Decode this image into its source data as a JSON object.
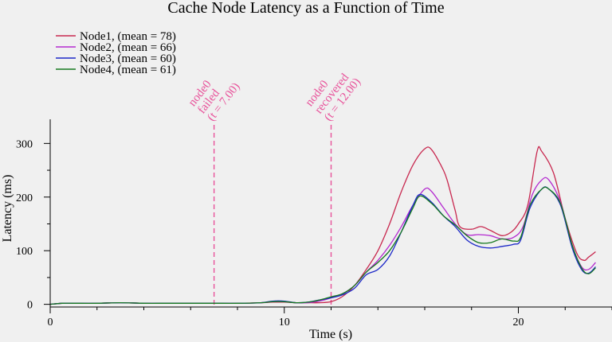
{
  "chart_data": {
    "type": "line",
    "title": "Cache Node Latency as a Function of Time",
    "xlabel": "Time (s)",
    "ylabel": "Latency (ms)",
    "xlim": [
      0,
      24
    ],
    "ylim": [
      -5,
      345
    ],
    "xticks": [
      0,
      10,
      20
    ],
    "xticks_minor": [
      2,
      4,
      6,
      8,
      12,
      14,
      16,
      18,
      22,
      24
    ],
    "yticks": [
      0,
      100,
      200,
      300
    ],
    "grid": false,
    "legend_position": "top-left",
    "series": [
      {
        "name": "Node1, (mean = 78)",
        "color": "#c8284f",
        "points": [
          [
            0,
            0
          ],
          [
            0.5,
            2
          ],
          [
            1,
            2
          ],
          [
            2,
            2
          ],
          [
            3,
            3
          ],
          [
            4,
            2
          ],
          [
            5,
            2
          ],
          [
            6,
            2
          ],
          [
            7,
            2
          ],
          [
            8,
            2
          ],
          [
            9,
            3
          ],
          [
            9.5,
            4
          ],
          [
            10,
            4
          ],
          [
            10.5,
            3
          ],
          [
            11,
            3
          ],
          [
            11.5,
            3
          ],
          [
            12,
            5
          ],
          [
            12.5,
            15
          ],
          [
            13,
            35
          ],
          [
            13.5,
            65
          ],
          [
            14,
            100
          ],
          [
            14.5,
            150
          ],
          [
            15,
            210
          ],
          [
            15.5,
            260
          ],
          [
            16,
            290
          ],
          [
            16.3,
            288
          ],
          [
            16.8,
            250
          ],
          [
            17,
            225
          ],
          [
            17.3,
            175
          ],
          [
            17.5,
            145
          ],
          [
            18,
            140
          ],
          [
            18.4,
            145
          ],
          [
            18.8,
            138
          ],
          [
            19.3,
            128
          ],
          [
            19.7,
            135
          ],
          [
            20,
            150
          ],
          [
            20.4,
            185
          ],
          [
            20.8,
            285
          ],
          [
            21,
            285
          ],
          [
            21.5,
            245
          ],
          [
            22,
            160
          ],
          [
            22.5,
            95
          ],
          [
            22.8,
            82
          ],
          [
            23,
            88
          ],
          [
            23.3,
            98
          ]
        ]
      },
      {
        "name": "Node2, (mean = 66)",
        "color": "#b42ad0",
        "points": [
          [
            0,
            0
          ],
          [
            0.5,
            2
          ],
          [
            1,
            2
          ],
          [
            2,
            2
          ],
          [
            3,
            3
          ],
          [
            4,
            2
          ],
          [
            5,
            2
          ],
          [
            6,
            2
          ],
          [
            7,
            2
          ],
          [
            8,
            2
          ],
          [
            9,
            3
          ],
          [
            9.5,
            5
          ],
          [
            10,
            5
          ],
          [
            10.5,
            3
          ],
          [
            11,
            3
          ],
          [
            11.5,
            6
          ],
          [
            12,
            12
          ],
          [
            12.5,
            20
          ],
          [
            13,
            35
          ],
          [
            13.5,
            60
          ],
          [
            14,
            82
          ],
          [
            14.5,
            110
          ],
          [
            15,
            145
          ],
          [
            15.5,
            185
          ],
          [
            16,
            215
          ],
          [
            16.3,
            210
          ],
          [
            16.8,
            180
          ],
          [
            17.3,
            150
          ],
          [
            17.8,
            130
          ],
          [
            18.3,
            130
          ],
          [
            18.8,
            128
          ],
          [
            19.3,
            122
          ],
          [
            19.8,
            125
          ],
          [
            20.2,
            145
          ],
          [
            20.6,
            205
          ],
          [
            21,
            232
          ],
          [
            21.3,
            232
          ],
          [
            21.8,
            190
          ],
          [
            22.3,
            110
          ],
          [
            22.7,
            70
          ],
          [
            23,
            65
          ],
          [
            23.3,
            78
          ]
        ]
      },
      {
        "name": "Node3, (mean = 60)",
        "color": "#1c28c8",
        "points": [
          [
            0,
            0
          ],
          [
            0.5,
            2
          ],
          [
            1,
            2
          ],
          [
            2,
            2
          ],
          [
            3,
            3
          ],
          [
            4,
            2
          ],
          [
            5,
            2
          ],
          [
            6,
            2
          ],
          [
            7,
            2
          ],
          [
            8,
            2
          ],
          [
            9,
            3
          ],
          [
            9.5,
            6
          ],
          [
            10,
            6
          ],
          [
            10.5,
            3
          ],
          [
            11,
            4
          ],
          [
            11.5,
            8
          ],
          [
            12,
            12
          ],
          [
            12.5,
            18
          ],
          [
            13,
            30
          ],
          [
            13.5,
            55
          ],
          [
            14,
            65
          ],
          [
            14.5,
            90
          ],
          [
            15,
            135
          ],
          [
            15.5,
            185
          ],
          [
            15.8,
            205
          ],
          [
            16.3,
            190
          ],
          [
            16.8,
            165
          ],
          [
            17.3,
            145
          ],
          [
            17.8,
            120
          ],
          [
            18.3,
            108
          ],
          [
            18.8,
            105
          ],
          [
            19.3,
            108
          ],
          [
            19.8,
            112
          ],
          [
            20.1,
            120
          ],
          [
            20.5,
            180
          ],
          [
            21,
            215
          ],
          [
            21.3,
            215
          ],
          [
            21.8,
            185
          ],
          [
            22.3,
            105
          ],
          [
            22.7,
            65
          ],
          [
            23,
            58
          ],
          [
            23.3,
            70
          ]
        ]
      },
      {
        "name": "Node4, (mean = 61)",
        "color": "#15781f",
        "points": [
          [
            0,
            0
          ],
          [
            0.5,
            2
          ],
          [
            1,
            2
          ],
          [
            2,
            2
          ],
          [
            3,
            3
          ],
          [
            4,
            2
          ],
          [
            5,
            2
          ],
          [
            6,
            2
          ],
          [
            7,
            2
          ],
          [
            8,
            2
          ],
          [
            9,
            3
          ],
          [
            9.5,
            5
          ],
          [
            10,
            5
          ],
          [
            10.5,
            3
          ],
          [
            11,
            4
          ],
          [
            11.5,
            8
          ],
          [
            12,
            14
          ],
          [
            12.5,
            20
          ],
          [
            13,
            35
          ],
          [
            13.5,
            60
          ],
          [
            14,
            78
          ],
          [
            14.5,
            100
          ],
          [
            15,
            135
          ],
          [
            15.5,
            180
          ],
          [
            15.8,
            202
          ],
          [
            16.3,
            188
          ],
          [
            16.8,
            165
          ],
          [
            17.3,
            148
          ],
          [
            17.8,
            128
          ],
          [
            18.3,
            115
          ],
          [
            18.8,
            115
          ],
          [
            19.3,
            122
          ],
          [
            19.8,
            118
          ],
          [
            20.1,
            125
          ],
          [
            20.5,
            185
          ],
          [
            21,
            215
          ],
          [
            21.3,
            215
          ],
          [
            21.8,
            188
          ],
          [
            22.3,
            110
          ],
          [
            22.7,
            68
          ],
          [
            23,
            57
          ],
          [
            23.3,
            68
          ]
        ]
      }
    ],
    "annotations": [
      {
        "x": 7,
        "color": "#e8529a",
        "lines": [
          "node0",
          "failed",
          "(t = 7.00)"
        ]
      },
      {
        "x": 12,
        "color": "#e8529a",
        "lines": [
          "node0",
          "recovered",
          "(t = 12.00)"
        ]
      }
    ]
  }
}
